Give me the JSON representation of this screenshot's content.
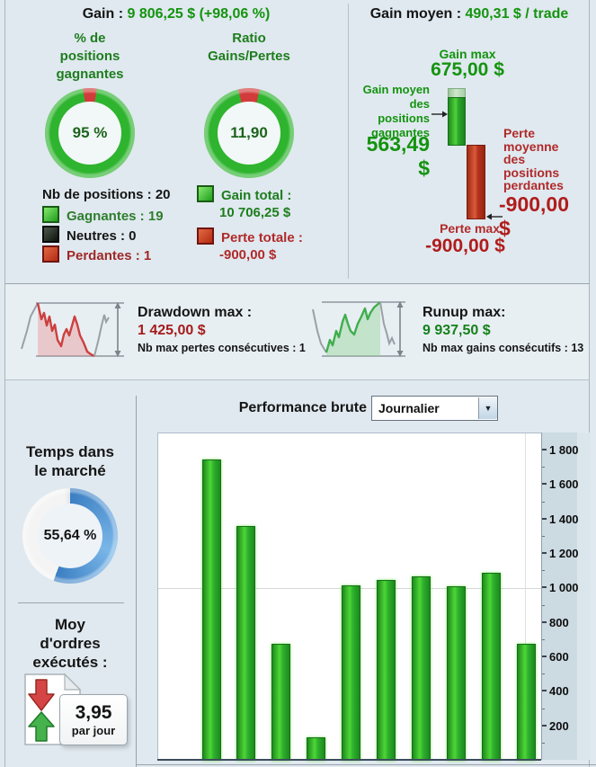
{
  "theme": {
    "bg": "#e0e9ef",
    "green_text": "#1e7d1e",
    "green_value": "#14930f",
    "red_text": "#a82020",
    "donut_green": "#2eb42e",
    "donut_red": "#d23b3b",
    "donut_blue": "#3b7ec2",
    "bar_green": "#2db02d"
  },
  "header": {
    "gain_label": "Gain :",
    "gain_value": "9 806,25 $ (+98,06 %)",
    "avg_label": "Gain moyen :",
    "avg_value": "490,31 $ / trade"
  },
  "winrate_donut": {
    "title": "% de\npositions\ngagnantes",
    "center": "95 %",
    "win_pct": 95
  },
  "ratio_donut": {
    "title": "Ratio\nGains/Pertes",
    "center": "11,90",
    "loss_pct": 7.75
  },
  "positions": {
    "total": "Nb de positions : 20",
    "items": [
      {
        "label": "Gagnantes : 19",
        "type": "green"
      },
      {
        "label": "Neutres : 0",
        "type": "black"
      },
      {
        "label": "Perdantes : 1",
        "type": "red"
      }
    ]
  },
  "totals": {
    "gain_label": "Gain total :",
    "gain_value": "10 706,25 $",
    "loss_label": "Perte totale :",
    "loss_value": "-900,00 $"
  },
  "avg_panel": {
    "gain_max_label": "Gain max",
    "gain_max_value": "675,00 $",
    "avg_win_label": "Gain moyen\ndes\npositions\ngagnantes",
    "avg_win_value": "563,49\n$",
    "avg_loss_label": "Perte\nmoyenne\ndes\npositions\nperdantes",
    "avg_loss_value": "-900,00\n$",
    "loss_max_label": "Perte max",
    "loss_max_value": "-900,00 $"
  },
  "drawdown": {
    "title": "Drawdown max :",
    "value": "1 425,00 $",
    "sub": "Nb max pertes consécutives : 1"
  },
  "runup": {
    "title": "Runup max:",
    "value": "9 937,50 $",
    "sub": "Nb max gains consécutifs : 13"
  },
  "time_in_market": {
    "title": "Temps dans\nle marché",
    "center": "55,64 %",
    "pct": 55.64
  },
  "orders": {
    "title": "Moy\nd'ordres\nexécutés :",
    "value": "3,95",
    "unit": "par jour"
  },
  "perf": {
    "title": "Performance brute",
    "dropdown_value": "Journalier"
  },
  "chart_data": {
    "type": "bar",
    "title": "Performance brute",
    "period": "Journalier",
    "values": [
      1740,
      1350,
      670,
      125,
      1010,
      1040,
      1060,
      1000,
      1080,
      670
    ],
    "ylim": [
      0,
      1900
    ],
    "ytick_step": 200,
    "ytick_labels": [
      "200",
      "400",
      "600",
      "800",
      "1 000",
      "1 200",
      "1 400",
      "1 600",
      "1 800"
    ],
    "gridline_y": 1000,
    "axis_side": "right",
    "bar_color": "#2db02d",
    "grid": "horizontal-at-1000"
  }
}
